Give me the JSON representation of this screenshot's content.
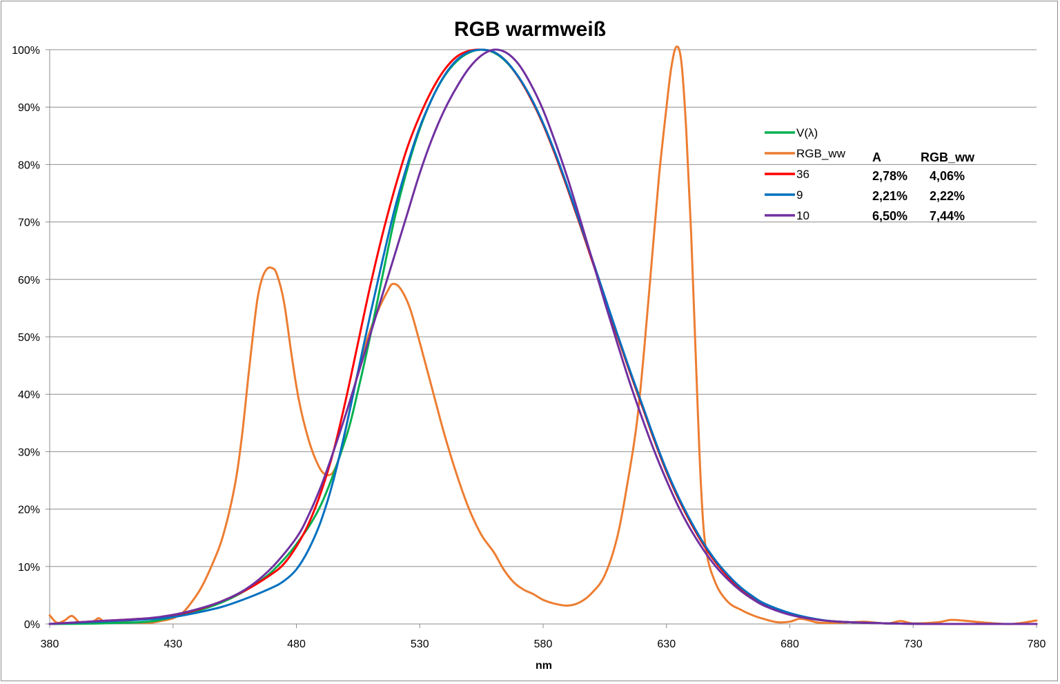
{
  "chart_data": {
    "type": "line",
    "title": "RGB warmweiß",
    "xlabel": "nm",
    "ylabel": "",
    "xlim": [
      380,
      780
    ],
    "ylim": [
      0,
      100
    ],
    "x_ticks": [
      "380",
      "430",
      "480",
      "530",
      "580",
      "630",
      "680",
      "730",
      "780"
    ],
    "y_ticks": [
      "0%",
      "10%",
      "20%",
      "30%",
      "40%",
      "50%",
      "60%",
      "70%",
      "80%",
      "90%",
      "100%"
    ],
    "grid": "horizontal",
    "legend_placement": "right",
    "series": [
      {
        "name": "V(λ)",
        "color": "#00b050",
        "points": [
          [
            380,
            0
          ],
          [
            400,
            0.1
          ],
          [
            420,
            0.4
          ],
          [
            430,
            1.2
          ],
          [
            440,
            2.3
          ],
          [
            450,
            3.8
          ],
          [
            460,
            6.0
          ],
          [
            470,
            9.1
          ],
          [
            480,
            13.9
          ],
          [
            490,
            20.8
          ],
          [
            500,
            32.3
          ],
          [
            505,
            40.7
          ],
          [
            510,
            50.3
          ],
          [
            515,
            60.8
          ],
          [
            520,
            71.0
          ],
          [
            525,
            79.3
          ],
          [
            530,
            86.2
          ],
          [
            535,
            91.5
          ],
          [
            540,
            95.4
          ],
          [
            545,
            98.0
          ],
          [
            550,
            99.5
          ],
          [
            555,
            100
          ],
          [
            560,
            99.5
          ],
          [
            565,
            97.9
          ],
          [
            570,
            95.2
          ],
          [
            575,
            91.5
          ],
          [
            580,
            87.0
          ],
          [
            585,
            81.6
          ],
          [
            590,
            75.7
          ],
          [
            595,
            69.5
          ],
          [
            600,
            63.1
          ],
          [
            605,
            56.7
          ],
          [
            610,
            50.3
          ],
          [
            615,
            44.1
          ],
          [
            620,
            38.1
          ],
          [
            625,
            32.1
          ],
          [
            630,
            26.5
          ],
          [
            635,
            21.7
          ],
          [
            640,
            17.5
          ],
          [
            645,
            13.8
          ],
          [
            650,
            10.7
          ],
          [
            655,
            8.2
          ],
          [
            660,
            6.1
          ],
          [
            665,
            4.5
          ],
          [
            670,
            3.2
          ],
          [
            680,
            1.7
          ],
          [
            690,
            0.8
          ],
          [
            700,
            0.4
          ],
          [
            720,
            0.1
          ],
          [
            740,
            0
          ],
          [
            780,
            0
          ]
        ]
      },
      {
        "name": "RGB_ww",
        "color": "#ed7d31",
        "points": [
          [
            380,
            1.5
          ],
          [
            383,
            0.2
          ],
          [
            386,
            0.6
          ],
          [
            389,
            1.4
          ],
          [
            392,
            0.3
          ],
          [
            395,
            0.2
          ],
          [
            398,
            0.5
          ],
          [
            400,
            1.0
          ],
          [
            403,
            0.2
          ],
          [
            410,
            0.3
          ],
          [
            420,
            0.2
          ],
          [
            425,
            0.5
          ],
          [
            430,
            1.0
          ],
          [
            434,
            2.0
          ],
          [
            437,
            3.5
          ],
          [
            441,
            6
          ],
          [
            445,
            9.5
          ],
          [
            450,
            15
          ],
          [
            455,
            24
          ],
          [
            458,
            33
          ],
          [
            461,
            45
          ],
          [
            464,
            56
          ],
          [
            466,
            60
          ],
          [
            468,
            61.8
          ],
          [
            470,
            62
          ],
          [
            472,
            61
          ],
          [
            475,
            56
          ],
          [
            478,
            47
          ],
          [
            481,
            39
          ],
          [
            485,
            32
          ],
          [
            489,
            27.5
          ],
          [
            492,
            26
          ],
          [
            495,
            26.5
          ],
          [
            498,
            30
          ],
          [
            501,
            36
          ],
          [
            505,
            44
          ],
          [
            509,
            50
          ],
          [
            513,
            54.5
          ],
          [
            517,
            58
          ],
          [
            519,
            59.2
          ],
          [
            522,
            58.5
          ],
          [
            526,
            55
          ],
          [
            530,
            49
          ],
          [
            535,
            41
          ],
          [
            540,
            33
          ],
          [
            545,
            26
          ],
          [
            550,
            20
          ],
          [
            555,
            15.5
          ],
          [
            560,
            12.5
          ],
          [
            564,
            9.5
          ],
          [
            568,
            7.3
          ],
          [
            572,
            6
          ],
          [
            576,
            5.2
          ],
          [
            580,
            4.2
          ],
          [
            585,
            3.5
          ],
          [
            590,
            3.2
          ],
          [
            595,
            3.8
          ],
          [
            600,
            5.5
          ],
          [
            605,
            8.5
          ],
          [
            610,
            15
          ],
          [
            614,
            24
          ],
          [
            618,
            35
          ],
          [
            621,
            48
          ],
          [
            624,
            63
          ],
          [
            627,
            78
          ],
          [
            630,
            90
          ],
          [
            632,
            97
          ],
          [
            634,
            100.5
          ],
          [
            636,
            98
          ],
          [
            638,
            86
          ],
          [
            640,
            68
          ],
          [
            642,
            45
          ],
          [
            644,
            24
          ],
          [
            646,
            13
          ],
          [
            650,
            7
          ],
          [
            655,
            3.8
          ],
          [
            660,
            2.5
          ],
          [
            665,
            1.5
          ],
          [
            670,
            0.8
          ],
          [
            675,
            0.3
          ],
          [
            680,
            0.4
          ],
          [
            684,
            0.9
          ],
          [
            688,
            0.6
          ],
          [
            692,
            0.2
          ],
          [
            700,
            0.2
          ],
          [
            710,
            0.4
          ],
          [
            715,
            0.2
          ],
          [
            720,
            0.1
          ],
          [
            725,
            0.5
          ],
          [
            730,
            0.1
          ],
          [
            740,
            0.3
          ],
          [
            745,
            0.7
          ],
          [
            750,
            0.6
          ],
          [
            760,
            0.2
          ],
          [
            770,
            0
          ],
          [
            780,
            0.6
          ]
        ]
      },
      {
        "name": "36",
        "color": "#ff0000",
        "points": [
          [
            380,
            0
          ],
          [
            400,
            0.5
          ],
          [
            420,
            1.0
          ],
          [
            430,
            1.5
          ],
          [
            440,
            2.5
          ],
          [
            450,
            4.0
          ],
          [
            460,
            6.0
          ],
          [
            470,
            8.7
          ],
          [
            475,
            10.5
          ],
          [
            480,
            13.5
          ],
          [
            485,
            17.5
          ],
          [
            490,
            23
          ],
          [
            495,
            30
          ],
          [
            500,
            39
          ],
          [
            505,
            49
          ],
          [
            510,
            59
          ],
          [
            515,
            68
          ],
          [
            520,
            76
          ],
          [
            525,
            83
          ],
          [
            530,
            88.5
          ],
          [
            535,
            93
          ],
          [
            540,
            96.5
          ],
          [
            545,
            98.8
          ],
          [
            550,
            99.8
          ],
          [
            555,
            100
          ],
          [
            560,
            99.6
          ],
          [
            565,
            98
          ],
          [
            570,
            95.2
          ],
          [
            575,
            91.5
          ],
          [
            580,
            87
          ],
          [
            585,
            81.6
          ],
          [
            590,
            75.7
          ],
          [
            595,
            69.5
          ],
          [
            600,
            63.1
          ],
          [
            605,
            56.7
          ],
          [
            610,
            50.3
          ],
          [
            615,
            44.1
          ],
          [
            620,
            38.1
          ],
          [
            625,
            32.1
          ],
          [
            630,
            26.5
          ],
          [
            635,
            21.7
          ],
          [
            640,
            17.5
          ],
          [
            645,
            13.8
          ],
          [
            650,
            10.7
          ],
          [
            655,
            8.2
          ],
          [
            660,
            6.1
          ],
          [
            665,
            4.5
          ],
          [
            670,
            3.2
          ],
          [
            680,
            1.7
          ],
          [
            690,
            0.8
          ],
          [
            700,
            0.4
          ],
          [
            720,
            0.1
          ],
          [
            740,
            0
          ],
          [
            780,
            0
          ]
        ]
      },
      {
        "name": "9",
        "color": "#0070c0",
        "points": [
          [
            380,
            0
          ],
          [
            400,
            0.4
          ],
          [
            420,
            0.8
          ],
          [
            430,
            1.2
          ],
          [
            440,
            2.0
          ],
          [
            450,
            3.0
          ],
          [
            460,
            4.5
          ],
          [
            470,
            6.3
          ],
          [
            475,
            7.5
          ],
          [
            480,
            9.5
          ],
          [
            485,
            13
          ],
          [
            490,
            18
          ],
          [
            495,
            25
          ],
          [
            500,
            34
          ],
          [
            505,
            44
          ],
          [
            510,
            54
          ],
          [
            515,
            63.5
          ],
          [
            520,
            72.5
          ],
          [
            525,
            80
          ],
          [
            530,
            86.5
          ],
          [
            535,
            91.5
          ],
          [
            540,
            95.5
          ],
          [
            545,
            98.2
          ],
          [
            550,
            99.6
          ],
          [
            555,
            100
          ],
          [
            560,
            99.6
          ],
          [
            565,
            98
          ],
          [
            570,
            95.3
          ],
          [
            575,
            91.7
          ],
          [
            580,
            87.2
          ],
          [
            585,
            81.9
          ],
          [
            590,
            76
          ],
          [
            595,
            69.8
          ],
          [
            600,
            63.4
          ],
          [
            605,
            57
          ],
          [
            610,
            50.6
          ],
          [
            615,
            44.4
          ],
          [
            620,
            38.4
          ],
          [
            625,
            32.4
          ],
          [
            630,
            26.8
          ],
          [
            635,
            22
          ],
          [
            640,
            17.8
          ],
          [
            645,
            14.1
          ],
          [
            650,
            11
          ],
          [
            655,
            8.5
          ],
          [
            660,
            6.4
          ],
          [
            665,
            4.8
          ],
          [
            670,
            3.5
          ],
          [
            680,
            1.9
          ],
          [
            690,
            0.9
          ],
          [
            700,
            0.4
          ],
          [
            720,
            0.1
          ],
          [
            740,
            0
          ],
          [
            780,
            0
          ]
        ]
      },
      {
        "name": "10",
        "color": "#7030a0",
        "points": [
          [
            380,
            0
          ],
          [
            400,
            0.5
          ],
          [
            420,
            1.0
          ],
          [
            430,
            1.6
          ],
          [
            440,
            2.6
          ],
          [
            450,
            4.0
          ],
          [
            460,
            6.2
          ],
          [
            470,
            9.8
          ],
          [
            480,
            15.0
          ],
          [
            485,
            19
          ],
          [
            490,
            24
          ],
          [
            495,
            30
          ],
          [
            500,
            36.5
          ],
          [
            505,
            43.5
          ],
          [
            510,
            50.5
          ],
          [
            515,
            57.5
          ],
          [
            520,
            64.5
          ],
          [
            525,
            71.5
          ],
          [
            530,
            78.5
          ],
          [
            535,
            84.5
          ],
          [
            540,
            89.5
          ],
          [
            545,
            93.5
          ],
          [
            550,
            96.8
          ],
          [
            555,
            99
          ],
          [
            560,
            100
          ],
          [
            565,
            99.5
          ],
          [
            570,
            97.5
          ],
          [
            575,
            94
          ],
          [
            580,
            89.5
          ],
          [
            585,
            83.8
          ],
          [
            590,
            77.5
          ],
          [
            595,
            70.5
          ],
          [
            600,
            63.3
          ],
          [
            605,
            56
          ],
          [
            610,
            49
          ],
          [
            615,
            42.2
          ],
          [
            620,
            36
          ],
          [
            625,
            30.2
          ],
          [
            630,
            25
          ],
          [
            635,
            20.3
          ],
          [
            640,
            16.3
          ],
          [
            645,
            12.9
          ],
          [
            650,
            10
          ],
          [
            655,
            7.7
          ],
          [
            660,
            5.8
          ],
          [
            665,
            4.3
          ],
          [
            670,
            3.1
          ],
          [
            680,
            1.6
          ],
          [
            690,
            0.8
          ],
          [
            700,
            0.4
          ],
          [
            720,
            0.1
          ],
          [
            740,
            0
          ],
          [
            780,
            0
          ]
        ]
      }
    ],
    "table": {
      "header": [
        "A",
        "RGB_ww"
      ],
      "rows": [
        {
          "series": "36",
          "values": [
            "2,78%",
            "4,06%"
          ]
        },
        {
          "series": "9",
          "values": [
            "2,21%",
            "2,22%"
          ]
        },
        {
          "series": "10",
          "values": [
            "6,50%",
            "7,44%"
          ]
        }
      ]
    }
  }
}
